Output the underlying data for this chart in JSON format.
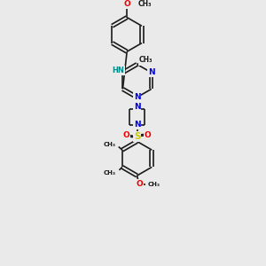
{
  "background_color": "#eaeaea",
  "bond_color": "#1a1a1a",
  "atom_colors": {
    "N": "#0000ee",
    "O": "#ee0000",
    "S": "#cccc00",
    "C": "#1a1a1a",
    "NH": "#008b8b"
  },
  "figsize": [
    3.0,
    3.0
  ],
  "dpi": 100,
  "xlim": [
    0,
    10
  ],
  "ylim": [
    0,
    13
  ]
}
